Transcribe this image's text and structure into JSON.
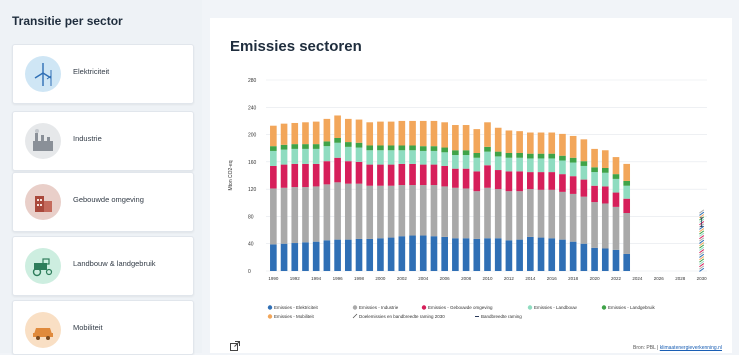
{
  "sidebar": {
    "title": "Transitie per sector",
    "items": [
      {
        "label": "Elektriciteit",
        "icon": "wind-turbine-icon",
        "color": "#cfe6f5"
      },
      {
        "label": "Industrie",
        "icon": "factory-icon",
        "color": "#e6e8ea"
      },
      {
        "label": "Gebouwde omgeving",
        "icon": "building-icon",
        "color": "#e9cfc9"
      },
      {
        "label": "Landbouw & landgebruik",
        "icon": "tractor-icon",
        "color": "#cdeee0"
      },
      {
        "label": "Mobiliteit",
        "icon": "car-icon",
        "color": "#f9dfc4"
      }
    ]
  },
  "main": {
    "title": "Emissies sectoren",
    "source_prefix": "Bron: PBL |",
    "source_link": "klimaatenergieverkenning.nl"
  },
  "chart_data": {
    "type": "bar",
    "stacked": true,
    "ylabel": "Mton CO2-eq",
    "ylim": [
      0,
      280
    ],
    "yticks": [
      0,
      40,
      80,
      120,
      160,
      200,
      240,
      280
    ],
    "xticks": [
      "1990",
      "1992",
      "1994",
      "1996",
      "1998",
      "2000",
      "2002",
      "2004",
      "2006",
      "2008",
      "2010",
      "2012",
      "2014",
      "2016",
      "2018",
      "2020",
      "2022",
      "2024",
      "2026",
      "2028",
      "2030"
    ],
    "categories": [
      "1990",
      "1991",
      "1992",
      "1993",
      "1994",
      "1995",
      "1996",
      "1997",
      "1998",
      "1999",
      "2000",
      "2001",
      "2002",
      "2003",
      "2004",
      "2005",
      "2006",
      "2007",
      "2008",
      "2009",
      "2010",
      "2011",
      "2012",
      "2013",
      "2014",
      "2015",
      "2016",
      "2017",
      "2018",
      "2019",
      "2020",
      "2021",
      "2022",
      "2023"
    ],
    "series": [
      {
        "name": "Emissies - Elektriciteit",
        "color": "#2f6fb5",
        "values": [
          39,
          40,
          41,
          42,
          43,
          45,
          46,
          46,
          47,
          47,
          48,
          49,
          51,
          52,
          52,
          51,
          50,
          48,
          48,
          47,
          48,
          48,
          45,
          46,
          50,
          49,
          48,
          46,
          43,
          40,
          34,
          33,
          31,
          25
        ]
      },
      {
        "name": "Emissies - Industrie",
        "color": "#a9a9a9",
        "values": [
          82,
          82,
          82,
          81,
          81,
          82,
          84,
          82,
          81,
          78,
          77,
          76,
          75,
          74,
          74,
          75,
          74,
          74,
          73,
          70,
          74,
          72,
          72,
          71,
          70,
          70,
          71,
          70,
          70,
          69,
          67,
          66,
          63,
          60
        ]
      },
      {
        "name": "Emissies - Gebouwde omgeving",
        "color": "#d61f5a",
        "values": [
          33,
          34,
          34,
          34,
          33,
          34,
          36,
          33,
          32,
          31,
          31,
          31,
          31,
          31,
          30,
          30,
          30,
          28,
          29,
          29,
          33,
          28,
          29,
          29,
          25,
          26,
          26,
          26,
          26,
          25,
          24,
          25,
          21,
          21
        ]
      },
      {
        "name": "Emissies - Landbouw",
        "color": "#8fdcc0",
        "values": [
          22,
          22,
          22,
          22,
          22,
          22,
          22,
          21,
          21,
          21,
          21,
          21,
          20,
          20,
          20,
          20,
          20,
          20,
          20,
          20,
          20,
          20,
          20,
          20,
          20,
          20,
          20,
          20,
          20,
          20,
          20,
          20,
          20,
          19
        ]
      },
      {
        "name": "Emissies - Landgebruik",
        "color": "#3fa348",
        "values": [
          7,
          7,
          7,
          7,
          7,
          7,
          7,
          7,
          7,
          7,
          7,
          7,
          7,
          7,
          7,
          7,
          7,
          7,
          7,
          7,
          7,
          7,
          7,
          7,
          7,
          7,
          7,
          7,
          7,
          7,
          7,
          7,
          7,
          7
        ]
      },
      {
        "name": "Emissies - Mobiliteit",
        "color": "#f2a65a",
        "values": [
          30,
          31,
          31,
          32,
          33,
          33,
          33,
          34,
          34,
          34,
          35,
          35,
          36,
          36,
          37,
          37,
          37,
          37,
          37,
          35,
          36,
          35,
          33,
          32,
          31,
          31,
          31,
          32,
          32,
          32,
          27,
          26,
          25,
          25
        ]
      }
    ],
    "legend": [
      {
        "label": "Emissies - Elektriciteit",
        "marker": "dot",
        "color": "#2f6fb5"
      },
      {
        "label": "Emissies - Industrie",
        "marker": "dot",
        "color": "#a9a9a9"
      },
      {
        "label": "Emissies - Gebouwde omgeving",
        "marker": "dot",
        "color": "#d61f5a"
      },
      {
        "label": "Emissies - Landbouw",
        "marker": "dot",
        "color": "#8fdcc0"
      },
      {
        "label": "Emissies - Landgebruik",
        "marker": "dot",
        "color": "#3fa348"
      },
      {
        "label": "Emissies - Mobiliteit",
        "marker": "dot",
        "color": "#f2a65a"
      },
      {
        "label": "Doelemissies en bandbreedte raming 2030",
        "marker": "hatch",
        "color": "#2f6fb5"
      },
      {
        "label": "Bandbreedte raming",
        "marker": "line",
        "color": "#2a3a5a"
      }
    ],
    "target_2030": {
      "year": "2030",
      "low": 0,
      "high": 89,
      "colors": [
        "#2f6fb5",
        "#a9a9a9",
        "#d61f5a",
        "#8fdcc0",
        "#3fa348",
        "#f2a65a"
      ]
    },
    "range_2030": {
      "low": 65,
      "high": 78
    }
  }
}
